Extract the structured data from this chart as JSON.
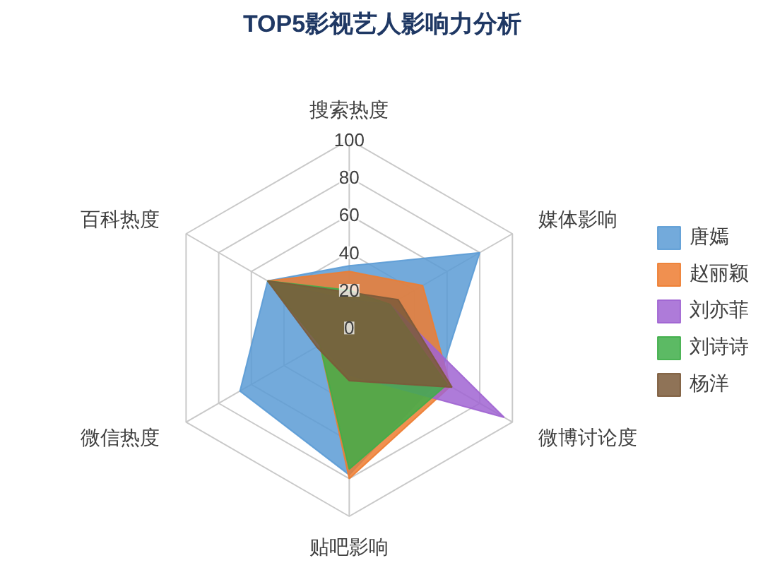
{
  "chart_data": {
    "type": "radar",
    "title": "TOP5影视艺人影响力分析",
    "categories": [
      "搜索热度",
      "媒体影响",
      "微博讨论度",
      "贴吧影响",
      "微信热度",
      "百科热度"
    ],
    "ylim": [
      0,
      100
    ],
    "yticks": [
      0,
      20,
      40,
      60,
      80,
      100
    ],
    "grid": true,
    "legend": "right",
    "series": [
      {
        "name": "唐嫣",
        "color": "#5b9bd5",
        "values": [
          33,
          80,
          55,
          78,
          67,
          50
        ]
      },
      {
        "name": "赵丽颖",
        "color": "#ed7d31",
        "values": [
          30,
          45,
          62,
          80,
          18,
          50
        ]
      },
      {
        "name": "刘亦菲",
        "color": "#a064d2",
        "values": [
          15,
          25,
          95,
          25,
          18,
          48
        ]
      },
      {
        "name": "刘诗诗",
        "color": "#3fae49",
        "values": [
          20,
          25,
          60,
          75,
          18,
          50
        ]
      },
      {
        "name": "杨洋",
        "color": "#7b5a3a",
        "values": [
          19,
          30,
          63,
          28,
          20,
          50
        ]
      }
    ]
  }
}
